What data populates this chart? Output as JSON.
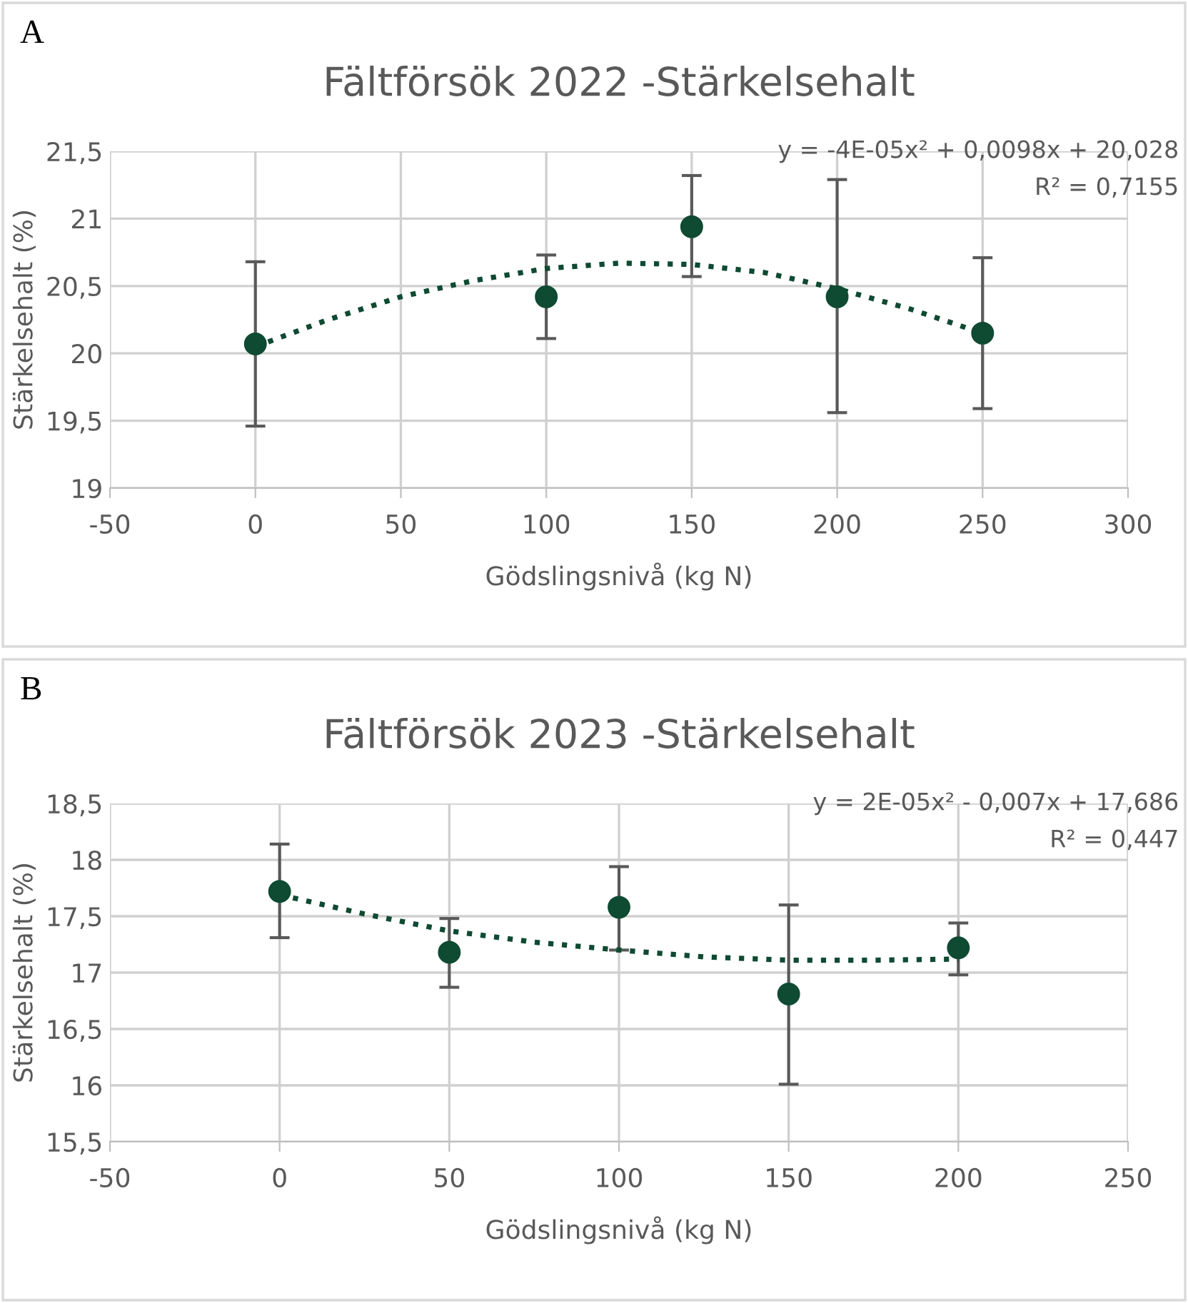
{
  "chart_data": [
    {
      "type": "scatter",
      "title": "Fältförsök 2022 -Stärkelsehalt",
      "xlabel": "Gödslingsnivå (kg N)",
      "ylabel": "Stärkelsehalt (%)",
      "annotations": [
        "A",
        "y = -4E-05x² + 0,0098x + 20,028",
        "R² = 0,7155"
      ],
      "xlim": [
        -50,
        300
      ],
      "xticks": [
        -50,
        0,
        50,
        100,
        150,
        200,
        250,
        300
      ],
      "ylim": [
        19,
        21.5
      ],
      "yticks": [
        19,
        {
          "value": 19.5,
          "label": "19,5"
        },
        20,
        {
          "value": 20.5,
          "label": "20,5"
        },
        21,
        {
          "value": 21.5,
          "label": "21,5"
        }
      ],
      "grid": true,
      "series": [
        {
          "color": "#0f4a33",
          "marker": "circle",
          "x": [
            0,
            100,
            150,
            200,
            250
          ],
          "values": [
            20.07,
            20.42,
            20.94,
            20.42,
            20.15
          ],
          "errors": [
            [
              19.46,
              20.68
            ],
            [
              20.11,
              20.73
            ],
            [
              20.57,
              21.32
            ],
            [
              19.56,
              21.29
            ],
            [
              19.59,
              20.71
            ]
          ]
        },
        {
          "type": "line",
          "color": "#0f4a33",
          "line_style": "dotted",
          "x": [
            0,
            25,
            50,
            75,
            100,
            125,
            150,
            175,
            200,
            225,
            250
          ],
          "values": [
            20.05,
            20.25,
            20.42,
            20.54,
            20.63,
            20.67,
            20.66,
            20.6,
            20.48,
            20.33,
            20.15
          ]
        }
      ]
    },
    {
      "type": "scatter",
      "title": "Fältförsök 2023 -Stärkelsehalt",
      "xlabel": "Gödslingsnivå (kg N)",
      "ylabel": "Stärkelsehalt (%)",
      "annotations": [
        "B",
        "y = 2E-05x² - 0,007x + 17,686",
        "R² = 0,447"
      ],
      "xlim": [
        -50,
        250
      ],
      "xticks": [
        -50,
        0,
        50,
        100,
        150,
        200,
        250
      ],
      "ylim": [
        15.5,
        18.5
      ],
      "yticks": [
        {
          "value": 15.5,
          "label": "15,5"
        },
        16,
        {
          "value": 16.5,
          "label": "16,5"
        },
        17,
        {
          "value": 17.5,
          "label": "17,5"
        },
        18,
        {
          "value": 18.5,
          "label": "18,5"
        }
      ],
      "grid": true,
      "series": [
        {
          "color": "#0f4a33",
          "marker": "circle",
          "x": [
            0,
            50,
            100,
            150,
            200
          ],
          "values": [
            17.72,
            17.18,
            17.58,
            16.81,
            17.22
          ],
          "errors": [
            [
              17.31,
              18.14
            ],
            [
              16.87,
              17.48
            ],
            [
              17.2,
              17.94
            ],
            [
              16.01,
              17.6
            ],
            [
              16.98,
              17.44
            ]
          ]
        },
        {
          "type": "line",
          "color": "#0f4a33",
          "line_style": "dotted",
          "x": [
            0,
            25,
            50,
            75,
            100,
            125,
            150,
            175,
            200
          ],
          "values": [
            17.69,
            17.52,
            17.37,
            17.27,
            17.2,
            17.14,
            17.11,
            17.11,
            17.12
          ]
        }
      ]
    }
  ]
}
